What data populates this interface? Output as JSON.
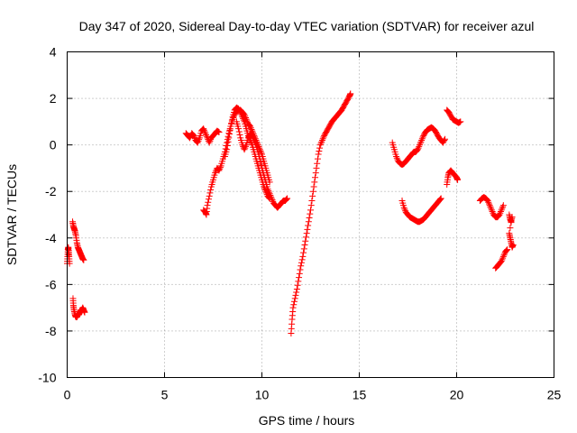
{
  "chart_data": {
    "type": "scatter",
    "title": "Day 347 of 2020, Sidereal Day-to-day VTEC variation (SDTVAR) for receiver azul",
    "xlabel": "GPS time / hours",
    "ylabel": "SDTVAR / TECUs",
    "xlim": [
      0,
      25
    ],
    "ylim": [
      -10,
      4
    ],
    "xticks": [
      0,
      5,
      10,
      15,
      20,
      25
    ],
    "yticks": [
      -10,
      -8,
      -6,
      -4,
      -2,
      0,
      2,
      4
    ],
    "xtick_labels": [
      "0",
      "5",
      "10",
      "15",
      "20",
      "25"
    ],
    "ytick_labels": [
      "-10",
      "-8",
      "-6",
      "-4",
      "-2",
      "0",
      "2",
      "4"
    ],
    "grid": true,
    "marker": "+",
    "color": "#ff0000",
    "series": [
      {
        "name": "azul",
        "segments": [
          [
            [
              0.0,
              -5.1
            ],
            [
              0.02,
              -4.8
            ],
            [
              0.04,
              -4.5
            ],
            [
              0.06,
              -4.4
            ],
            [
              0.08,
              -4.6
            ],
            [
              0.1,
              -4.8
            ],
            [
              0.12,
              -5.1
            ]
          ],
          [
            [
              0.28,
              -3.3
            ],
            [
              0.32,
              -3.5
            ],
            [
              0.36,
              -3.6
            ],
            [
              0.4,
              -3.7
            ],
            [
              0.45,
              -3.9
            ],
            [
              0.5,
              -4.2
            ],
            [
              0.55,
              -4.4
            ],
            [
              0.6,
              -4.5
            ],
            [
              0.65,
              -4.6
            ],
            [
              0.7,
              -4.7
            ],
            [
              0.75,
              -4.8
            ],
            [
              0.8,
              -4.9
            ],
            [
              0.85,
              -4.95
            ]
          ],
          [
            [
              0.3,
              -6.6
            ],
            [
              0.32,
              -6.9
            ],
            [
              0.35,
              -7.1
            ],
            [
              0.4,
              -7.3
            ],
            [
              0.45,
              -7.4
            ],
            [
              0.5,
              -7.4
            ],
            [
              0.55,
              -7.3
            ],
            [
              0.6,
              -7.3
            ],
            [
              0.65,
              -7.2
            ],
            [
              0.7,
              -7.1
            ],
            [
              0.75,
              -7.1
            ],
            [
              0.8,
              -7.0
            ],
            [
              0.85,
              -7.1
            ],
            [
              0.9,
              -7.2
            ]
          ],
          [
            [
              6.1,
              0.5
            ],
            [
              6.2,
              0.4
            ],
            [
              6.3,
              0.3
            ],
            [
              6.4,
              0.5
            ],
            [
              6.5,
              0.4
            ],
            [
              6.6,
              0.2
            ],
            [
              6.7,
              0.1
            ],
            [
              6.8,
              0.3
            ],
            [
              6.9,
              0.6
            ],
            [
              7.0,
              0.7
            ],
            [
              7.1,
              0.5
            ],
            [
              7.2,
              0.3
            ],
            [
              7.3,
              0.1
            ],
            [
              7.4,
              0.3
            ],
            [
              7.5,
              0.4
            ],
            [
              7.6,
              0.5
            ],
            [
              7.7,
              0.6
            ],
            [
              7.8,
              0.55
            ]
          ],
          [
            [
              7.0,
              -2.8
            ],
            [
              7.1,
              -2.9
            ],
            [
              7.15,
              -3.0
            ],
            [
              7.2,
              -2.6
            ],
            [
              7.3,
              -2.2
            ],
            [
              7.4,
              -1.8
            ],
            [
              7.5,
              -1.5
            ],
            [
              7.6,
              -1.2
            ],
            [
              7.7,
              -1.0
            ],
            [
              7.8,
              -1.1
            ],
            [
              7.9,
              -0.9
            ],
            [
              8.0,
              -0.6
            ],
            [
              8.1,
              -0.3
            ],
            [
              8.2,
              0.1
            ],
            [
              8.3,
              0.5
            ],
            [
              8.4,
              0.8
            ],
            [
              8.5,
              1.1
            ],
            [
              8.6,
              1.3
            ],
            [
              8.7,
              1.45
            ],
            [
              8.8,
              1.5
            ],
            [
              8.9,
              1.5
            ],
            [
              9.0,
              1.4
            ],
            [
              9.1,
              1.3
            ],
            [
              9.2,
              1.1
            ],
            [
              9.3,
              0.9
            ],
            [
              9.4,
              0.8
            ],
            [
              9.5,
              0.6
            ],
            [
              9.6,
              0.4
            ],
            [
              9.7,
              0.2
            ],
            [
              9.8,
              0.0
            ],
            [
              9.9,
              -0.2
            ],
            [
              10.0,
              -0.4
            ],
            [
              10.1,
              -0.7
            ],
            [
              10.2,
              -1.0
            ],
            [
              10.3,
              -1.3
            ],
            [
              10.4,
              -1.6
            ]
          ],
          [
            [
              8.1,
              -0.5
            ],
            [
              8.2,
              -0.2
            ],
            [
              8.3,
              0.3
            ],
            [
              8.4,
              0.8
            ],
            [
              8.5,
              1.2
            ],
            [
              8.6,
              1.5
            ],
            [
              8.7,
              1.6
            ],
            [
              8.8,
              1.55
            ],
            [
              8.9,
              1.4
            ],
            [
              9.0,
              1.2
            ],
            [
              9.1,
              1.0
            ],
            [
              9.2,
              0.7
            ],
            [
              9.3,
              0.4
            ],
            [
              9.4,
              0.2
            ],
            [
              9.5,
              0.0
            ],
            [
              9.6,
              -0.3
            ],
            [
              9.7,
              -0.6
            ],
            [
              9.8,
              -0.9
            ],
            [
              9.9,
              -1.2
            ],
            [
              10.0,
              -1.5
            ],
            [
              10.1,
              -1.8
            ],
            [
              10.2,
              -2.0
            ],
            [
              10.3,
              -2.2
            ],
            [
              10.4,
              -2.3
            ]
          ],
          [
            [
              8.7,
              1.0
            ],
            [
              8.8,
              0.7
            ],
            [
              8.9,
              0.3
            ],
            [
              9.0,
              0.0
            ],
            [
              9.1,
              -0.2
            ],
            [
              9.2,
              0.0
            ],
            [
              9.3,
              0.3
            ],
            [
              9.4,
              0.5
            ],
            [
              9.5,
              0.4
            ],
            [
              9.6,
              0.2
            ],
            [
              9.7,
              0.0
            ],
            [
              9.8,
              -0.3
            ],
            [
              9.9,
              -0.6
            ],
            [
              10.0,
              -1.0
            ],
            [
              10.1,
              -1.3
            ],
            [
              10.2,
              -1.6
            ],
            [
              10.3,
              -1.9
            ],
            [
              10.4,
              -2.1
            ],
            [
              10.5,
              -2.3
            ],
            [
              10.6,
              -2.5
            ],
            [
              10.7,
              -2.6
            ],
            [
              10.8,
              -2.7
            ],
            [
              10.9,
              -2.6
            ],
            [
              11.0,
              -2.5
            ],
            [
              11.1,
              -2.4
            ],
            [
              11.2,
              -2.4
            ],
            [
              11.3,
              -2.3
            ]
          ],
          [
            [
              11.5,
              -8.1
            ],
            [
              11.55,
              -7.5
            ],
            [
              11.6,
              -7.0
            ],
            [
              11.7,
              -6.6
            ],
            [
              11.8,
              -6.2
            ],
            [
              11.9,
              -5.7
            ],
            [
              12.0,
              -5.2
            ],
            [
              12.1,
              -4.8
            ],
            [
              12.2,
              -4.3
            ],
            [
              12.3,
              -3.8
            ],
            [
              12.4,
              -3.3
            ],
            [
              12.5,
              -2.8
            ],
            [
              12.6,
              -2.2
            ],
            [
              12.7,
              -1.6
            ],
            [
              12.8,
              -1.0
            ],
            [
              12.9,
              -0.4
            ],
            [
              13.0,
              0.0
            ],
            [
              13.1,
              0.2
            ],
            [
              13.2,
              0.4
            ],
            [
              13.3,
              0.55
            ],
            [
              13.4,
              0.7
            ],
            [
              13.5,
              0.85
            ],
            [
              13.6,
              1.0
            ],
            [
              13.7,
              1.1
            ],
            [
              13.8,
              1.2
            ],
            [
              13.9,
              1.3
            ],
            [
              14.0,
              1.4
            ],
            [
              14.1,
              1.5
            ],
            [
              14.2,
              1.65
            ],
            [
              14.3,
              1.8
            ],
            [
              14.4,
              1.95
            ],
            [
              14.5,
              2.1
            ],
            [
              14.55,
              2.2
            ]
          ],
          [
            [
              16.7,
              0.1
            ],
            [
              16.8,
              -0.2
            ],
            [
              16.9,
              -0.5
            ],
            [
              17.0,
              -0.7
            ],
            [
              17.1,
              -0.8
            ],
            [
              17.2,
              -0.85
            ],
            [
              17.3,
              -0.8
            ],
            [
              17.4,
              -0.7
            ],
            [
              17.5,
              -0.6
            ],
            [
              17.6,
              -0.5
            ],
            [
              17.7,
              -0.4
            ],
            [
              17.8,
              -0.3
            ],
            [
              17.9,
              -0.3
            ],
            [
              18.0,
              -0.2
            ],
            [
              18.1,
              0.0
            ],
            [
              18.2,
              0.2
            ],
            [
              18.3,
              0.4
            ],
            [
              18.4,
              0.55
            ],
            [
              18.5,
              0.65
            ],
            [
              18.6,
              0.7
            ],
            [
              18.7,
              0.75
            ],
            [
              18.8,
              0.7
            ],
            [
              18.9,
              0.6
            ],
            [
              19.0,
              0.45
            ],
            [
              19.1,
              0.3
            ],
            [
              19.2,
              0.2
            ],
            [
              19.3,
              0.1
            ],
            [
              19.4,
              0.25
            ]
          ],
          [
            [
              17.2,
              -2.4
            ],
            [
              17.3,
              -2.7
            ],
            [
              17.4,
              -2.9
            ],
            [
              17.5,
              -3.0
            ],
            [
              17.6,
              -3.1
            ],
            [
              17.7,
              -3.15
            ],
            [
              17.8,
              -3.2
            ],
            [
              17.9,
              -3.25
            ],
            [
              18.0,
              -3.3
            ],
            [
              18.1,
              -3.3
            ],
            [
              18.2,
              -3.25
            ],
            [
              18.3,
              -3.2
            ],
            [
              18.4,
              -3.1
            ],
            [
              18.5,
              -3.0
            ],
            [
              18.6,
              -2.9
            ],
            [
              18.7,
              -2.8
            ],
            [
              18.8,
              -2.7
            ],
            [
              18.9,
              -2.6
            ],
            [
              19.0,
              -2.5
            ],
            [
              19.1,
              -2.4
            ],
            [
              19.2,
              -2.3
            ]
          ],
          [
            [
              19.5,
              1.5
            ],
            [
              19.6,
              1.4
            ],
            [
              19.7,
              1.25
            ],
            [
              19.8,
              1.1
            ],
            [
              19.9,
              1.05
            ],
            [
              20.0,
              1.0
            ],
            [
              20.1,
              0.95
            ],
            [
              20.2,
              1.0
            ]
          ],
          [
            [
              19.5,
              -1.7
            ],
            [
              19.55,
              -1.4
            ],
            [
              19.6,
              -1.2
            ],
            [
              19.7,
              -1.1
            ],
            [
              19.8,
              -1.2
            ],
            [
              19.9,
              -1.3
            ],
            [
              20.0,
              -1.4
            ],
            [
              20.05,
              -1.5
            ]
          ],
          [
            [
              21.2,
              -2.4
            ],
            [
              21.3,
              -2.3
            ],
            [
              21.4,
              -2.25
            ],
            [
              21.5,
              -2.3
            ],
            [
              21.6,
              -2.4
            ],
            [
              21.7,
              -2.6
            ],
            [
              21.8,
              -2.8
            ],
            [
              21.9,
              -3.0
            ],
            [
              22.0,
              -3.1
            ],
            [
              22.1,
              -3.1
            ],
            [
              22.2,
              -3.0
            ],
            [
              22.3,
              -2.8
            ],
            [
              22.4,
              -2.6
            ]
          ],
          [
            [
              22.0,
              -5.3
            ],
            [
              22.1,
              -5.2
            ],
            [
              22.2,
              -5.1
            ],
            [
              22.3,
              -5.0
            ],
            [
              22.4,
              -4.8
            ],
            [
              22.5,
              -4.6
            ],
            [
              22.6,
              -4.5
            ]
          ],
          [
            [
              22.7,
              -3.0
            ],
            [
              22.75,
              -3.2
            ],
            [
              22.8,
              -3.3
            ],
            [
              22.85,
              -3.1
            ],
            [
              22.7,
              -3.8
            ],
            [
              22.75,
              -4.0
            ],
            [
              22.8,
              -4.2
            ],
            [
              22.85,
              -4.4
            ],
            [
              22.9,
              -4.3
            ]
          ]
        ]
      }
    ]
  }
}
